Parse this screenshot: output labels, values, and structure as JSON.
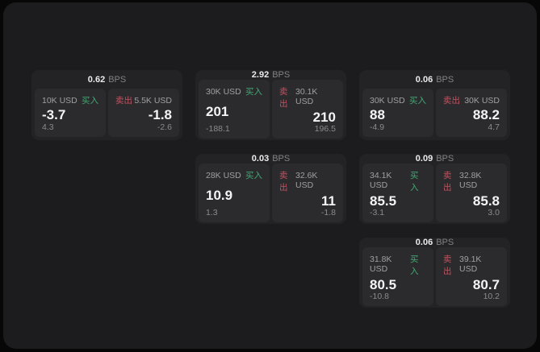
{
  "labels": {
    "bps_unit": "BPS",
    "buy": "买入",
    "sell": "卖出"
  },
  "colors": {
    "window_bg": "#1c1c1e",
    "card_bg": "#232325",
    "panel_bg": "#2b2b2e",
    "buy_green": "#44a874",
    "sell_red": "#c25260"
  },
  "cards": [
    {
      "bps": "0.62",
      "buy": {
        "size": "10K USD",
        "price": "-3.7",
        "sub": "4.3"
      },
      "sell": {
        "size": "5.5K USD",
        "price": "-1.8",
        "sub": "-2.6"
      }
    },
    {
      "bps": "2.92",
      "buy": {
        "size": "30K USD",
        "price": "201",
        "sub": "-188.1"
      },
      "sell": {
        "size": "30.1K USD",
        "price": "210",
        "sub": "196.5"
      }
    },
    {
      "bps": "0.06",
      "buy": {
        "size": "30K USD",
        "price": "88",
        "sub": "-4.9"
      },
      "sell": {
        "size": "30K USD",
        "price": "88.2",
        "sub": "4.7"
      }
    },
    {
      "bps": "0.03",
      "buy": {
        "size": "28K USD",
        "price": "10.9",
        "sub": "1.3"
      },
      "sell": {
        "size": "32.6K USD",
        "price": "11",
        "sub": "-1.8"
      }
    },
    {
      "bps": "0.09",
      "buy": {
        "size": "34.1K USD",
        "price": "85.5",
        "sub": "-3.1"
      },
      "sell": {
        "size": "32.8K USD",
        "price": "85.8",
        "sub": "3.0"
      }
    },
    {
      "bps": "0.06",
      "buy": {
        "size": "31.8K USD",
        "price": "80.5",
        "sub": "-10.8"
      },
      "sell": {
        "size": "39.1K USD",
        "price": "80.7",
        "sub": "10.2"
      }
    }
  ]
}
